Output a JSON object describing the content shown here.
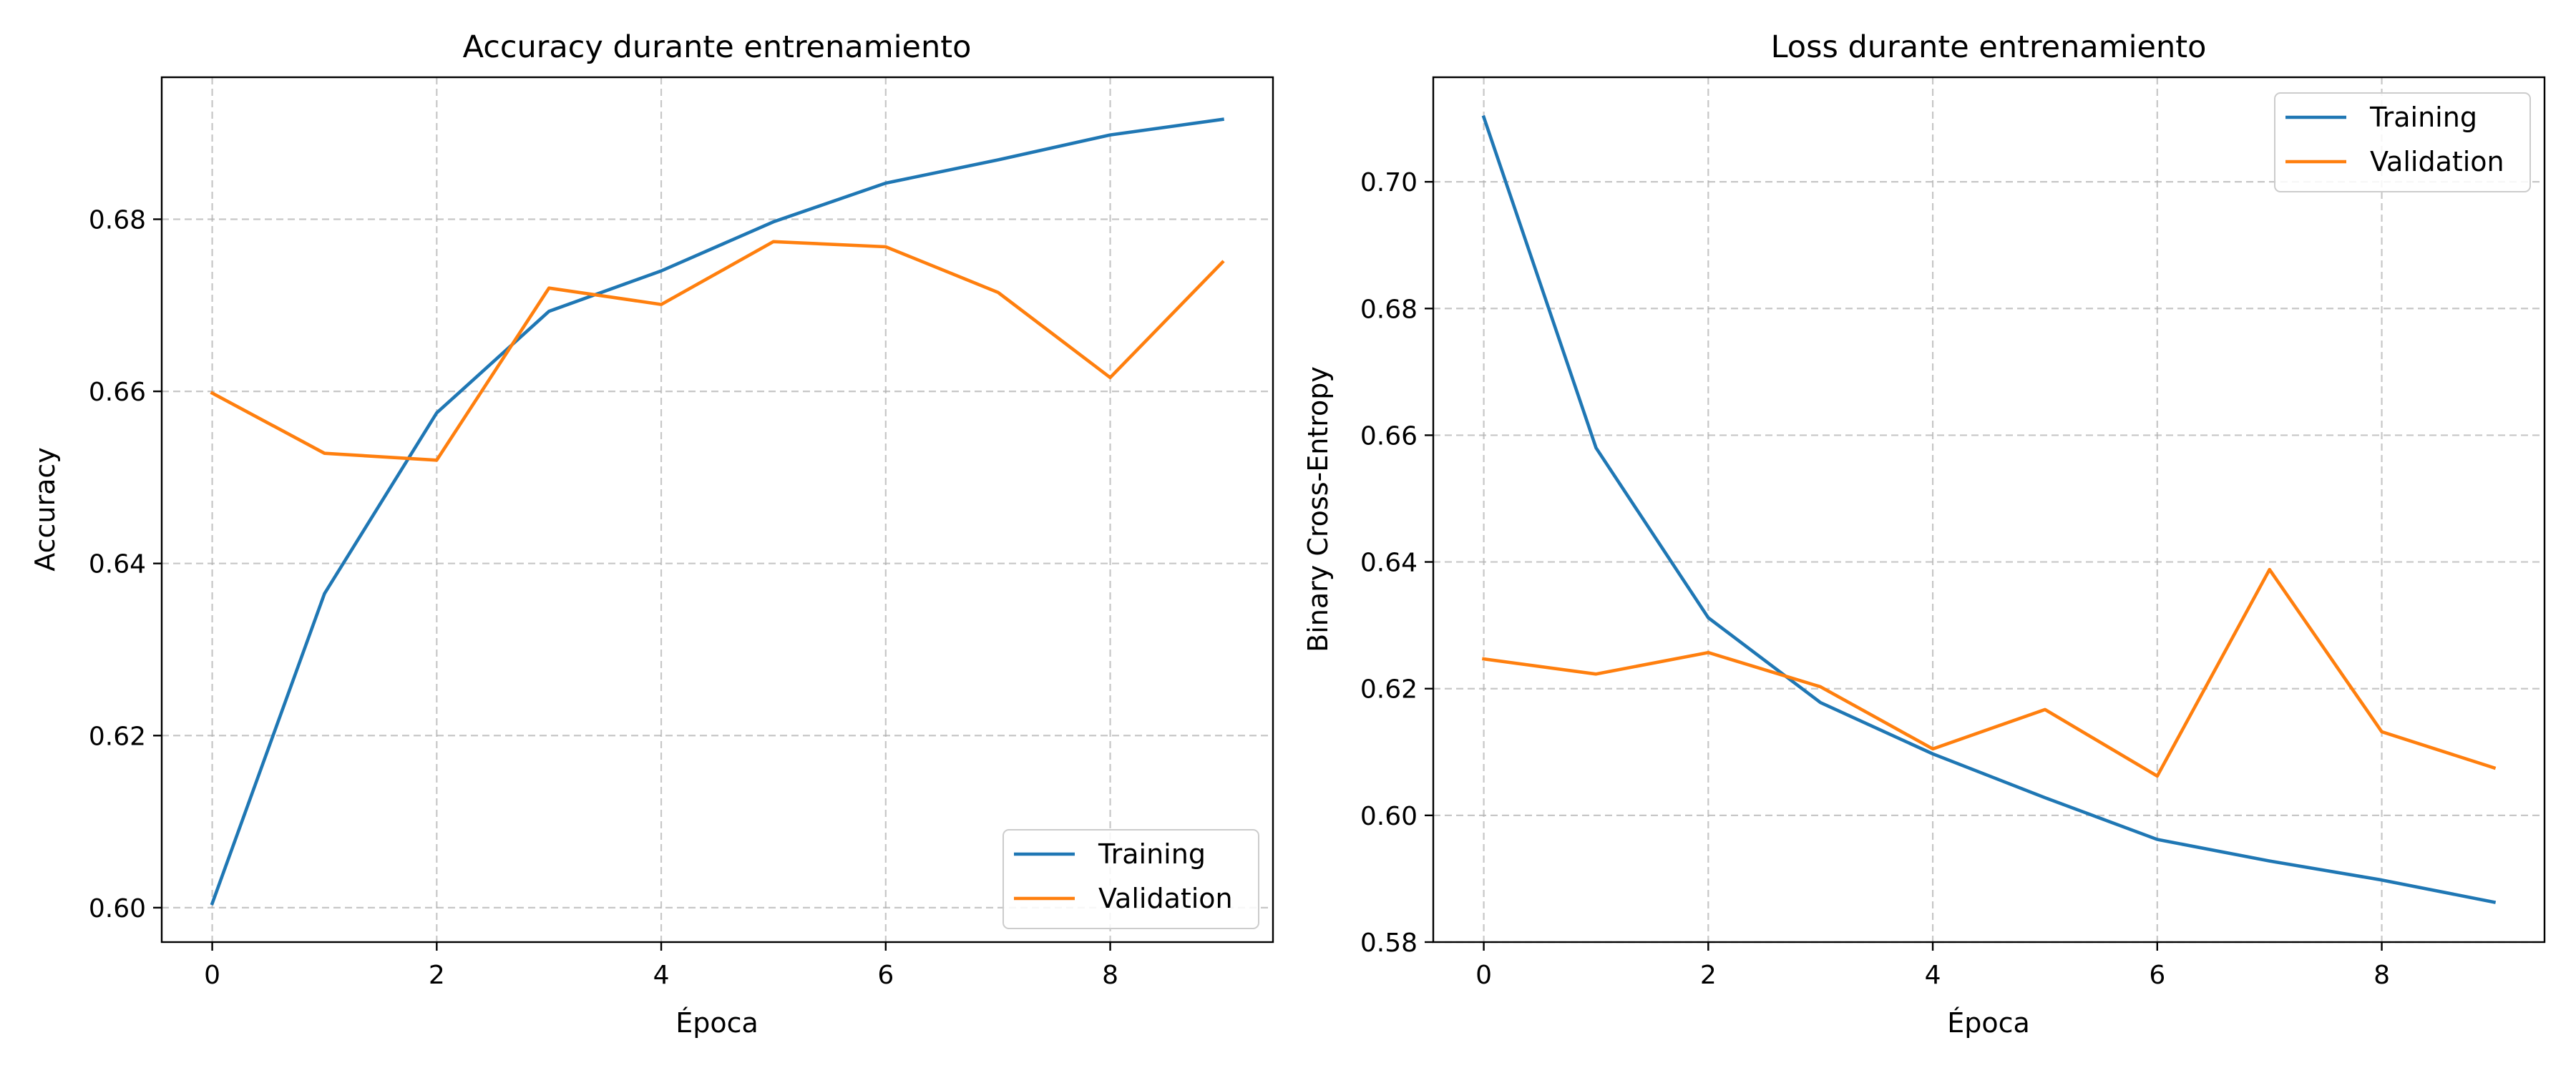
{
  "chart_data": [
    {
      "type": "line",
      "title": "Accuracy durante entrenamiento",
      "xlabel": "Época",
      "ylabel": "Accuracy",
      "x": [
        0,
        1,
        2,
        3,
        4,
        5,
        6,
        7,
        8,
        9
      ],
      "xlim": [
        -0.45,
        9.45
      ],
      "ylim": [
        0.596,
        0.6965
      ],
      "xticks": [
        0,
        2,
        4,
        6,
        8
      ],
      "yticks": [
        0.6,
        0.62,
        0.64,
        0.66,
        0.68
      ],
      "ytick_labels": [
        "0.60",
        "0.62",
        "0.64",
        "0.66",
        "0.68"
      ],
      "grid": true,
      "legend_position": "lower-right",
      "series": [
        {
          "name": "Training",
          "color": "#1f77b4",
          "values": [
            0.6005,
            0.6365,
            0.6575,
            0.6693,
            0.674,
            0.6797,
            0.6842,
            0.6869,
            0.6898,
            0.6916
          ]
        },
        {
          "name": "Validation",
          "color": "#ff7f0e",
          "values": [
            0.6598,
            0.6528,
            0.652,
            0.672,
            0.6701,
            0.6774,
            0.6768,
            0.6715,
            0.6616,
            0.675
          ]
        }
      ]
    },
    {
      "type": "line",
      "title": "Loss durante entrenamiento",
      "xlabel": "Época",
      "ylabel": "Binary Cross-Entropy",
      "x": [
        0,
        1,
        2,
        3,
        4,
        5,
        6,
        7,
        8,
        9
      ],
      "xlim": [
        -0.45,
        9.45
      ],
      "ylim": [
        0.58,
        0.7165
      ],
      "xticks": [
        0,
        2,
        4,
        6,
        8
      ],
      "yticks": [
        0.58,
        0.6,
        0.62,
        0.64,
        0.66,
        0.68,
        0.7
      ],
      "ytick_labels": [
        "0.58",
        "0.60",
        "0.62",
        "0.64",
        "0.66",
        "0.68",
        "0.70"
      ],
      "grid": true,
      "legend_position": "upper-right",
      "series": [
        {
          "name": "Training",
          "color": "#1f77b4",
          "values": [
            0.7102,
            0.658,
            0.6312,
            0.6178,
            0.6097,
            0.6028,
            0.5962,
            0.5928,
            0.5898,
            0.5863
          ]
        },
        {
          "name": "Validation",
          "color": "#ff7f0e",
          "values": [
            0.6247,
            0.6223,
            0.6257,
            0.6203,
            0.6105,
            0.6167,
            0.6062,
            0.6388,
            0.6132,
            0.6075
          ]
        }
      ]
    }
  ]
}
